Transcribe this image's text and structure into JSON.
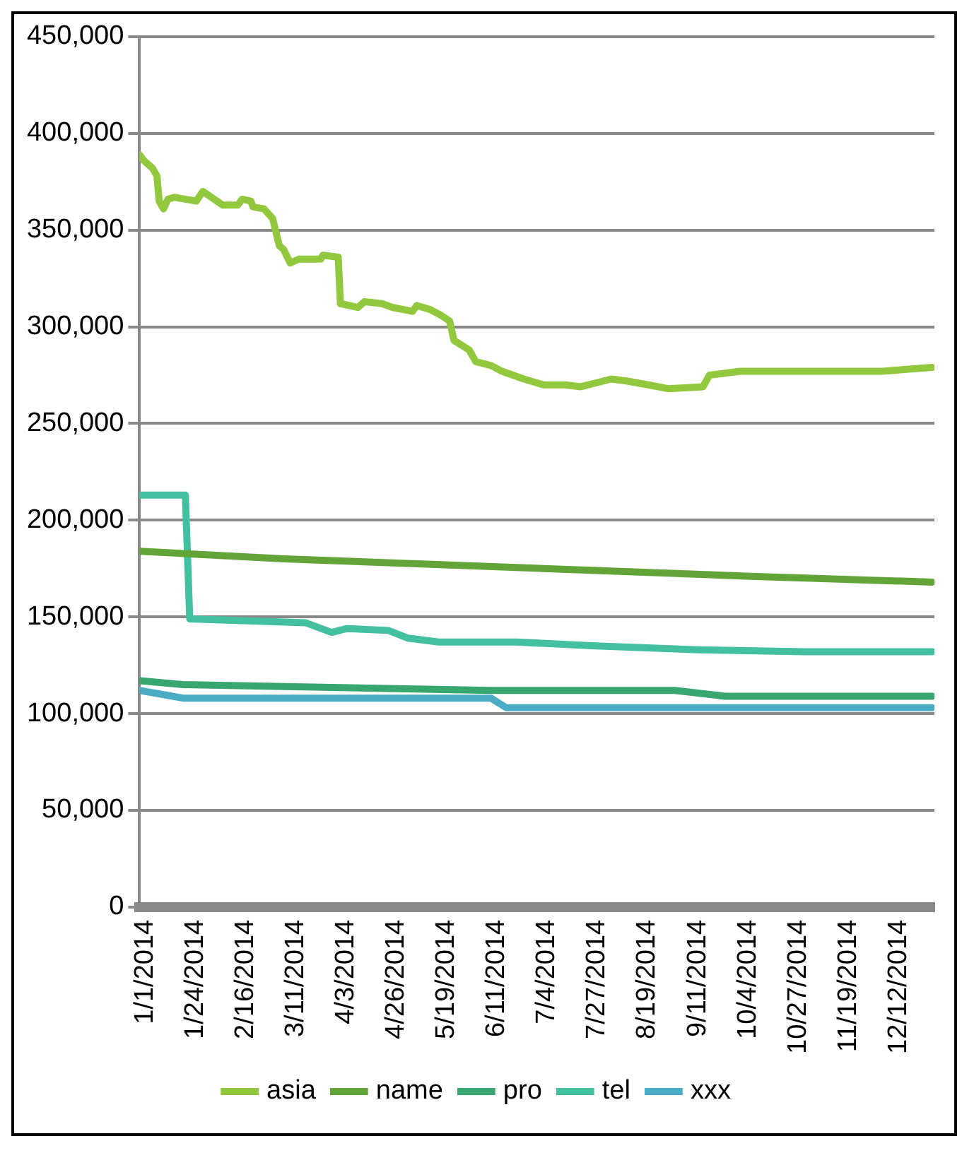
{
  "chart_data": {
    "type": "line",
    "xlim": [
      "2014-01-01",
      "2014-12-31"
    ],
    "xticks": [
      {
        "value": "2014-01-01",
        "label": "1/1/2014"
      },
      {
        "value": "2014-01-24",
        "label": "1/24/2014"
      },
      {
        "value": "2014-02-16",
        "label": "2/16/2014"
      },
      {
        "value": "2014-03-11",
        "label": "3/11/2014"
      },
      {
        "value": "2014-04-03",
        "label": "4/3/2014"
      },
      {
        "value": "2014-04-26",
        "label": "4/26/2014"
      },
      {
        "value": "2014-05-19",
        "label": "5/19/2014"
      },
      {
        "value": "2014-06-11",
        "label": "6/11/2014"
      },
      {
        "value": "2014-07-04",
        "label": "7/4/2014"
      },
      {
        "value": "2014-07-27",
        "label": "7/27/2014"
      },
      {
        "value": "2014-08-19",
        "label": "8/19/2014"
      },
      {
        "value": "2014-09-11",
        "label": "9/11/2014"
      },
      {
        "value": "2014-10-04",
        "label": "10/4/2014"
      },
      {
        "value": "2014-10-27",
        "label": "10/27/2014"
      },
      {
        "value": "2014-11-19",
        "label": "11/19/2014"
      },
      {
        "value": "2014-12-12",
        "label": "12/12/2014"
      }
    ],
    "ylim": [
      0,
      450000
    ],
    "yticks": [
      0,
      {
        "value": 50000,
        "label": "50,000"
      },
      {
        "value": 100000,
        "label": "100,000"
      },
      {
        "value": 150000,
        "label": "150,000"
      },
      {
        "value": 200000,
        "label": "200,000"
      },
      {
        "value": 250000,
        "label": "250,000"
      },
      {
        "value": 300000,
        "label": "300,000"
      },
      {
        "value": 350000,
        "label": "350,000"
      },
      {
        "value": 400000,
        "label": "400,000"
      },
      {
        "value": 450000,
        "label": "450,000"
      }
    ],
    "grid": "y",
    "legend": "bottom",
    "marker": "none",
    "line_style": "solid",
    "series": [
      {
        "name": "asia",
        "color": "#92c83e",
        "x": [
          "2014-01-01",
          "2014-01-03",
          "2014-01-07",
          "2014-01-09",
          "2014-01-10",
          "2014-01-12",
          "2014-01-14",
          "2014-01-17",
          "2014-01-27",
          "2014-01-30",
          "2014-02-08",
          "2014-02-15",
          "2014-02-17",
          "2014-02-21",
          "2014-02-22",
          "2014-02-27",
          "2014-03-03",
          "2014-03-06",
          "2014-03-08",
          "2014-03-11",
          "2014-03-15",
          "2014-03-25",
          "2014-03-26",
          "2014-04-02",
          "2014-04-03",
          "2014-04-11",
          "2014-04-14",
          "2014-04-22",
          "2014-04-27",
          "2014-05-06",
          "2014-05-08",
          "2014-05-14",
          "2014-05-19",
          "2014-05-23",
          "2014-05-25",
          "2014-06-01",
          "2014-06-04",
          "2014-06-11",
          "2014-06-16",
          "2014-06-26",
          "2014-07-05",
          "2014-07-15",
          "2014-07-22",
          "2014-07-29",
          "2014-08-05",
          "2014-08-12",
          "2014-08-22",
          "2014-08-31",
          "2014-09-16",
          "2014-09-19",
          "2014-10-03",
          "2014-11-01",
          "2014-12-07",
          "2014-12-30"
        ],
        "values": [
          389000,
          386000,
          382000,
          378000,
          365000,
          361000,
          366000,
          367000,
          365000,
          370000,
          363000,
          363000,
          366000,
          365000,
          362000,
          361000,
          356000,
          342000,
          340000,
          333000,
          335000,
          335000,
          337000,
          336000,
          312000,
          310000,
          313000,
          312000,
          310000,
          308000,
          311000,
          309000,
          306000,
          303000,
          293000,
          288000,
          282000,
          280000,
          277000,
          273000,
          270000,
          270000,
          269000,
          271000,
          273000,
          272000,
          270000,
          268000,
          269000,
          275000,
          277000,
          277000,
          277000,
          279000
        ]
      },
      {
        "name": "name",
        "color": "#62a437",
        "x": [
          "2014-01-01",
          "2014-03-08",
          "2014-05-19",
          "2014-07-29",
          "2014-10-08",
          "2014-12-30"
        ],
        "values": [
          184000,
          180000,
          177000,
          174000,
          171000,
          168000
        ]
      },
      {
        "name": "pro",
        "color": "#37a76f",
        "x": [
          "2014-01-01",
          "2014-01-21",
          "2014-03-08",
          "2014-06-11",
          "2014-09-03",
          "2014-09-26",
          "2014-12-30"
        ],
        "values": [
          117000,
          115000,
          114000,
          112000,
          112000,
          109000,
          109000
        ]
      },
      {
        "name": "tel",
        "color": "#42c0a0",
        "x": [
          "2014-01-01",
          "2014-01-22",
          "2014-01-24",
          "2014-03-18",
          "2014-03-30",
          "2014-04-06",
          "2014-04-25",
          "2014-05-04",
          "2014-05-18",
          "2014-06-23",
          "2014-07-29",
          "2014-09-14",
          "2014-11-01",
          "2014-12-30"
        ],
        "values": [
          213000,
          213000,
          149000,
          147000,
          142000,
          144000,
          143000,
          139000,
          137000,
          137000,
          135000,
          133000,
          132000,
          132000
        ]
      },
      {
        "name": "xxx",
        "color": "#4bacc6",
        "x": [
          "2014-01-01",
          "2014-01-21",
          "2014-06-11",
          "2014-06-18",
          "2014-12-30"
        ],
        "values": [
          112000,
          108000,
          108000,
          103000,
          103000
        ]
      }
    ]
  }
}
